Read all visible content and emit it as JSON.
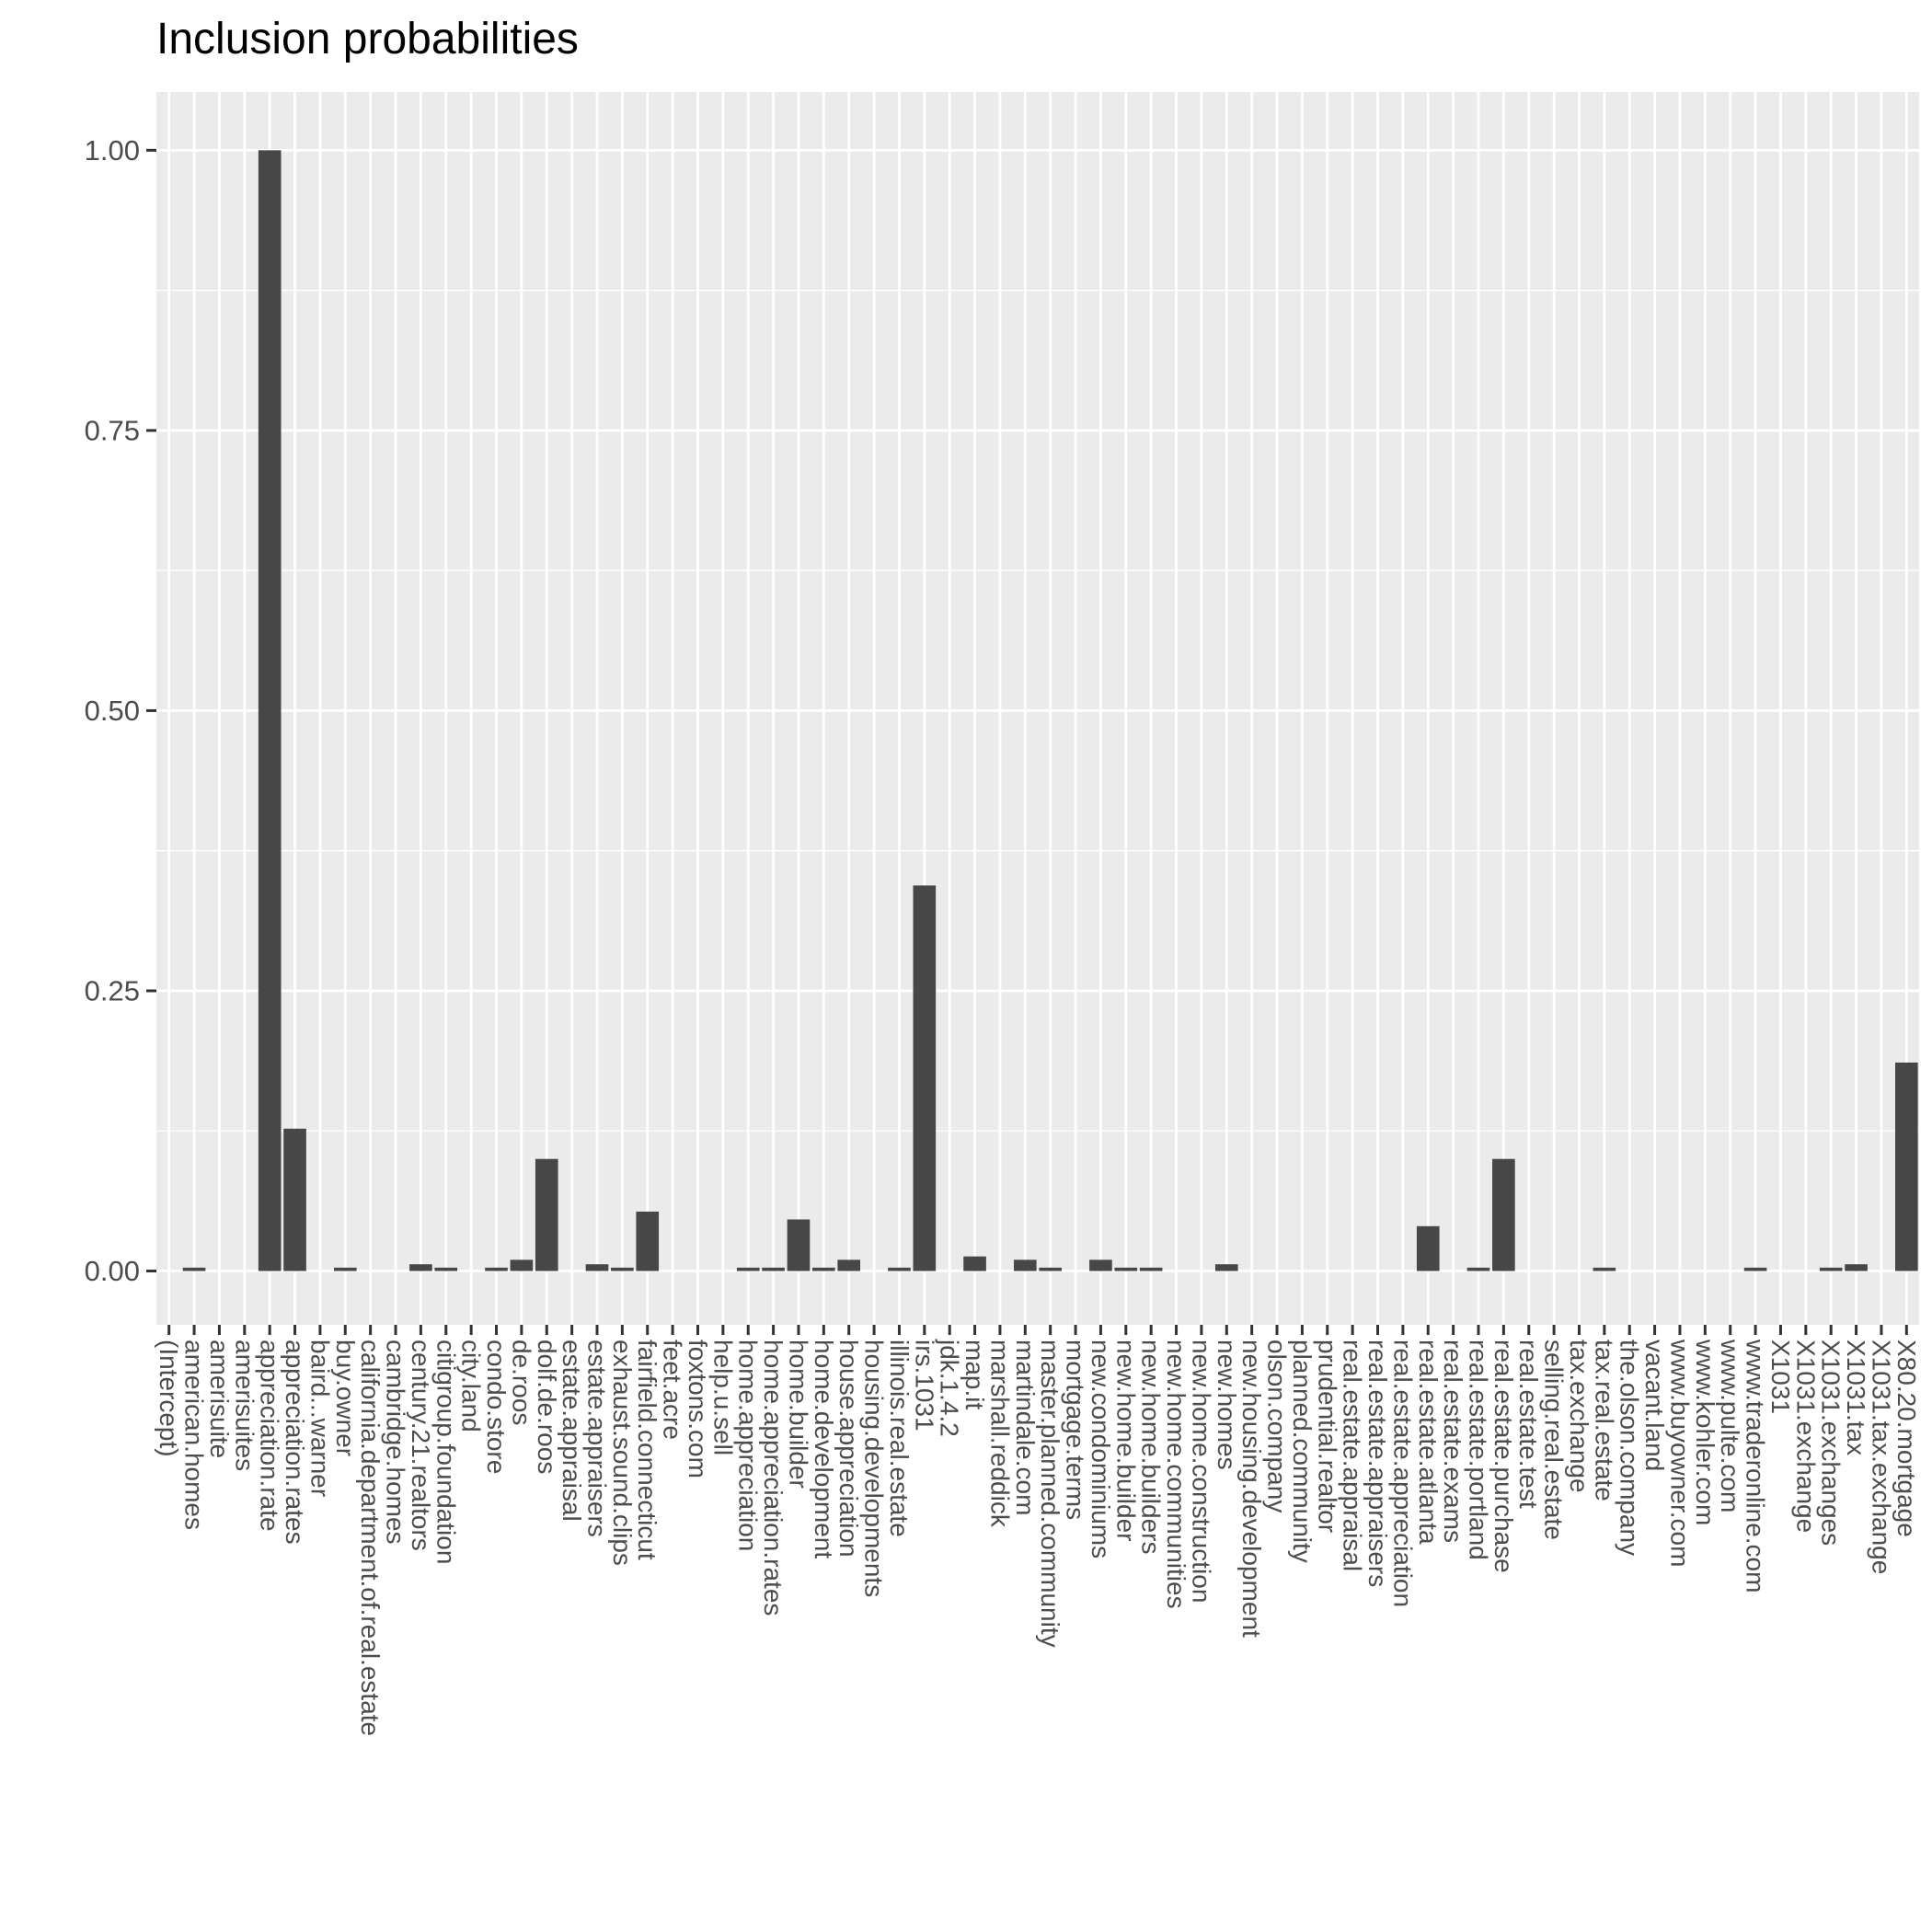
{
  "chart_data": {
    "type": "bar",
    "title": "Inclusion probabilities",
    "xlabel": "",
    "ylabel": "",
    "ylim": [
      -0.048,
      1.052
    ],
    "yticks": [
      0.0,
      0.25,
      0.5,
      0.75,
      1.0
    ],
    "ytick_labels": [
      "0.00",
      "0.25",
      "0.50",
      "0.75",
      "1.00"
    ],
    "grid": true,
    "legend": "none",
    "categories": [
      "(Intercept)",
      "american.homes",
      "amerisuite",
      "amerisuites",
      "appreciation.rate",
      "appreciation.rates",
      "baird...warner",
      "buy.owner",
      "california.department.of.real.estate",
      "cambridge.homes",
      "century.21.realtors",
      "citigroup.foundation",
      "city.land",
      "condo.store",
      "de.roos",
      "dolf.de.roos",
      "estate.appraisal",
      "estate.appraisers",
      "exhaust.sound.clips",
      "fairfield.connecticut",
      "feet.acre",
      "foxtons.com",
      "help.u.sell",
      "home.appreciation",
      "home.appreciation.rates",
      "home.builder",
      "home.development",
      "house.appreciation",
      "housing.developments",
      "illinois.real.estate",
      "irs.1031",
      "jdk.1.4.2",
      "map.it",
      "marshall.reddick",
      "martindale.com",
      "master.planned.community",
      "mortgage.terms",
      "new.condominiums",
      "new.home.builder",
      "new.home.builders",
      "new.home.communities",
      "new.home.construction",
      "new.homes",
      "new.housing.development",
      "olson.company",
      "planned.community",
      "prudential.realtor",
      "real.estate.appraisal",
      "real.estate.appraisers",
      "real.estate.appreciation",
      "real.estate.atlanta",
      "real.estate.exams",
      "real.estate.portland",
      "real.estate.purchase",
      "real.estate.test",
      "selling.real.estate",
      "tax.exchange",
      "tax.real.estate",
      "the.olson.company",
      "vacant.land",
      "www.buyowner.com",
      "www.kohler.com",
      "www.pulte.com",
      "www.traderonline.com",
      "X1031",
      "X1031.exchange",
      "X1031.exchanges",
      "X1031.tax",
      "X1031.tax.exchange",
      "X80.20.mortgage"
    ],
    "values": [
      0,
      0.003,
      0,
      0,
      1.0,
      0.127,
      0,
      0.003,
      0,
      0,
      0.006,
      0.003,
      0,
      0.003,
      0.01,
      0.1,
      0,
      0.006,
      0.003,
      0.053,
      0,
      0,
      0,
      0.003,
      0.003,
      0.046,
      0.003,
      0.01,
      0,
      0.003,
      0.344,
      0,
      0.013,
      0,
      0.01,
      0.003,
      0,
      0.01,
      0.003,
      0.003,
      0,
      0,
      0.006,
      0,
      0,
      0,
      0,
      0,
      0,
      0,
      0.04,
      0,
      0.003,
      0.1,
      0,
      0,
      0,
      0.003,
      0,
      0,
      0,
      0,
      0,
      0.003,
      0,
      0,
      0.003,
      0.006,
      0,
      0.186
    ]
  },
  "colors": {
    "panel_background": "#EBEBEB",
    "grid_major": "#FFFFFF",
    "bar_fill": "#474747",
    "tick_text": "#4D4D4D",
    "tick_mark": "#333333",
    "title_text": "#000000"
  }
}
